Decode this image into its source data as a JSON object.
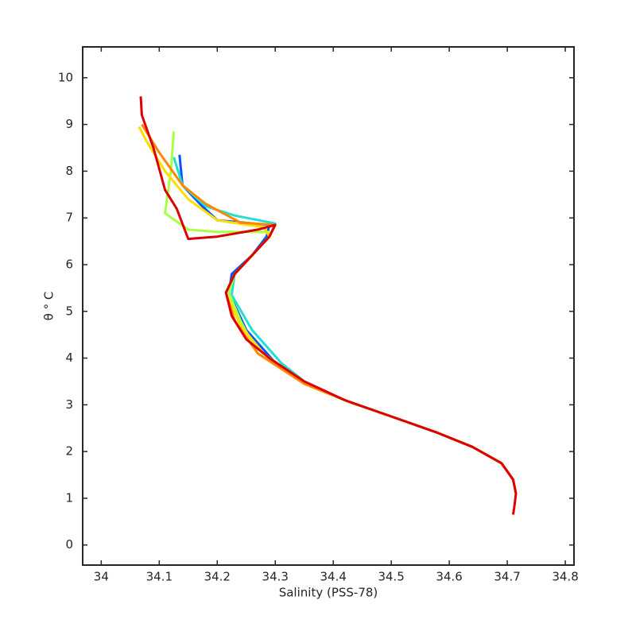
{
  "chart_data": {
    "type": "line",
    "xlabel": "Salinity (PSS-78)",
    "ylabel": "θ ° C",
    "xlim": [
      33.968,
      34.815
    ],
    "ylim": [
      -0.43,
      10.66
    ],
    "xticks": [
      34,
      34.1,
      34.2,
      34.3,
      34.4,
      34.5,
      34.6,
      34.7,
      34.8
    ],
    "yticks": [
      0,
      1,
      2,
      3,
      4,
      5,
      6,
      7,
      8,
      9,
      10
    ],
    "series": [
      {
        "color": "#0055ff",
        "x": [
          34.135,
          34.14,
          34.17,
          34.2,
          34.29,
          34.285,
          34.26,
          34.225,
          34.22,
          34.25,
          34.3,
          34.36,
          34.43,
          34.5,
          34.58,
          34.64,
          34.69,
          34.71,
          34.715
        ],
        "values": [
          8.35,
          7.7,
          7.3,
          6.95,
          6.85,
          6.6,
          6.2,
          5.8,
          5.4,
          4.6,
          3.9,
          3.4,
          3.05,
          2.75,
          2.4,
          2.1,
          1.75,
          1.4,
          1.1
        ]
      },
      {
        "color": "#22e0d0",
        "x": [
          34.125,
          34.14,
          34.18,
          34.23,
          34.3,
          34.29,
          34.26,
          34.23,
          34.225,
          34.26,
          34.31,
          34.36,
          34.43,
          34.5,
          34.58,
          34.64,
          34.69,
          34.71,
          34.715
        ],
        "values": [
          8.3,
          7.7,
          7.25,
          7.05,
          6.88,
          6.6,
          6.2,
          5.8,
          5.35,
          4.6,
          3.9,
          3.4,
          3.05,
          2.75,
          2.4,
          2.1,
          1.75,
          1.4,
          1.1
        ]
      },
      {
        "color": "#aaff44",
        "x": [
          34.125,
          34.12,
          34.11,
          34.15,
          34.2,
          34.29,
          34.29,
          34.26,
          34.23,
          34.22,
          34.24,
          34.27,
          34.36,
          34.43,
          34.5,
          34.58,
          34.64,
          34.69,
          34.71,
          34.715
        ],
        "values": [
          8.85,
          8.0,
          7.1,
          6.75,
          6.7,
          6.7,
          6.6,
          6.2,
          5.8,
          5.4,
          4.8,
          4.1,
          3.4,
          3.05,
          2.75,
          2.4,
          2.1,
          1.75,
          1.4,
          1.1
        ]
      },
      {
        "color": "#ffdd00",
        "x": [
          34.065,
          34.08,
          34.11,
          34.15,
          34.2,
          34.28,
          34.29,
          34.26,
          34.23,
          34.215,
          34.24,
          34.28,
          34.35,
          34.43,
          34.5,
          34.58,
          34.64,
          34.69,
          34.71,
          34.715
        ],
        "values": [
          8.95,
          8.6,
          8.0,
          7.4,
          6.95,
          6.8,
          6.6,
          6.2,
          5.8,
          5.4,
          4.7,
          4.1,
          3.45,
          3.05,
          2.75,
          2.4,
          2.1,
          1.75,
          1.4,
          1.1
        ]
      },
      {
        "color": "#ff8800",
        "x": [
          34.07,
          34.1,
          34.14,
          34.18,
          34.24,
          34.3,
          34.29,
          34.26,
          34.23,
          34.215,
          34.23,
          34.27,
          34.35,
          34.43,
          34.5,
          34.58,
          34.64,
          34.69,
          34.71,
          34.715
        ],
        "values": [
          9.0,
          8.4,
          7.7,
          7.3,
          6.9,
          6.85,
          6.6,
          6.2,
          5.8,
          5.4,
          4.8,
          4.1,
          3.45,
          3.05,
          2.75,
          2.4,
          2.1,
          1.75,
          1.4,
          1.1
        ]
      },
      {
        "color": "#dd0000",
        "x": [
          34.068,
          34.07,
          34.09,
          34.11,
          34.13,
          34.15,
          34.2,
          34.27,
          34.3,
          34.29,
          34.26,
          34.23,
          34.215,
          34.225,
          34.25,
          34.29,
          34.35,
          34.42,
          34.5,
          34.58,
          34.64,
          34.69,
          34.71,
          34.715,
          34.712,
          34.71
        ],
        "values": [
          9.6,
          9.2,
          8.5,
          7.6,
          7.2,
          6.55,
          6.6,
          6.75,
          6.85,
          6.6,
          6.2,
          5.8,
          5.4,
          4.9,
          4.4,
          4.0,
          3.5,
          3.1,
          2.75,
          2.4,
          2.1,
          1.75,
          1.4,
          1.1,
          0.8,
          0.65
        ]
      }
    ]
  }
}
